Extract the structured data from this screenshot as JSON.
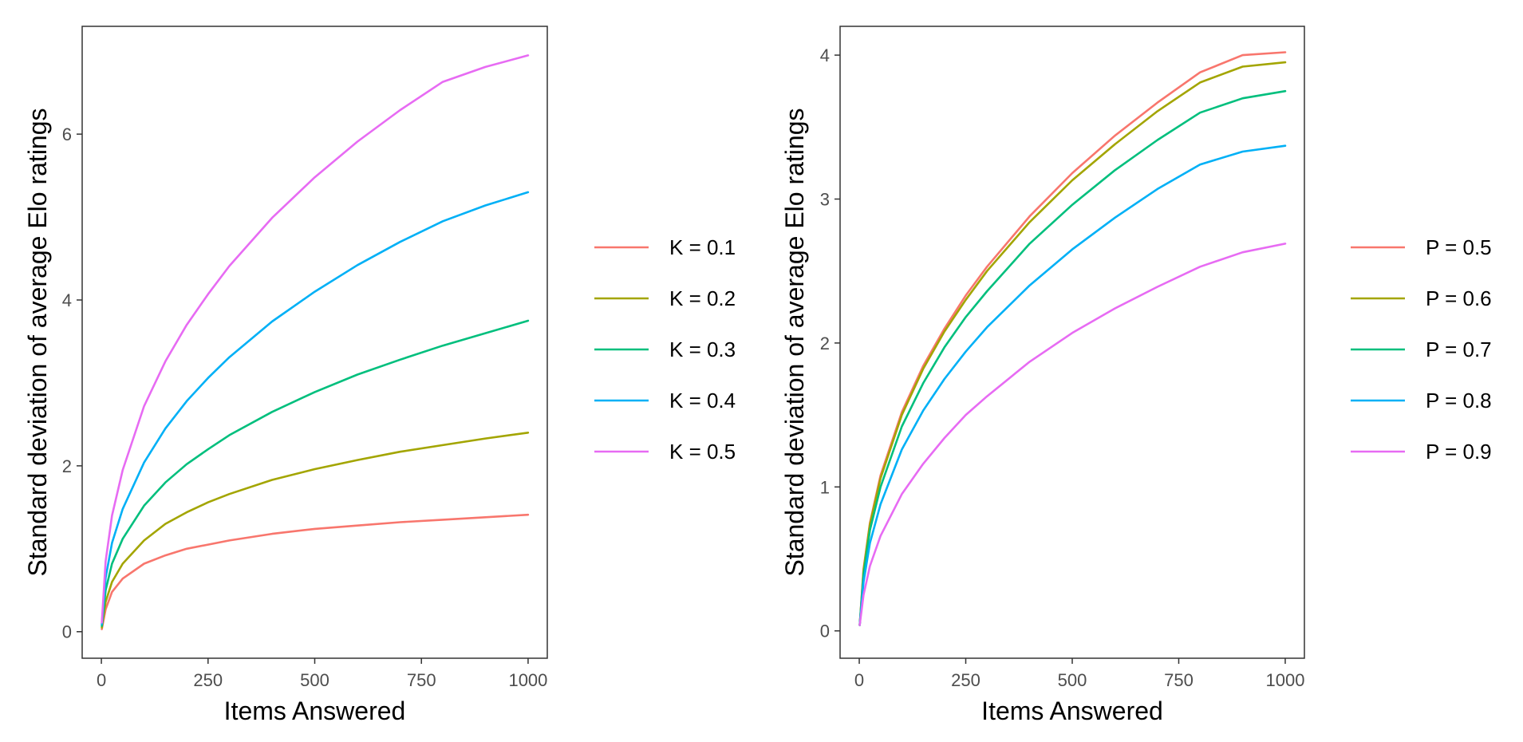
{
  "chart_data": [
    {
      "type": "line",
      "xlabel": "Items Answered",
      "ylabel": "Standard deviation of average Elo ratings",
      "xlim": [
        -45,
        1045
      ],
      "ylim": [
        -0.32,
        7.3
      ],
      "xticks": [
        0,
        250,
        500,
        750,
        1000
      ],
      "xtick_labels": [
        "0",
        "250",
        "500",
        "750",
        "1000"
      ],
      "yticks": [
        0,
        2,
        4,
        6
      ],
      "ytick_labels": [
        "0",
        "2",
        "4",
        "6"
      ],
      "grid": false,
      "legend_position": "right",
      "series": [
        {
          "name": "K = 0.1",
          "color": "#F8766D",
          "x": [
            1,
            10,
            25,
            50,
            100,
            150,
            200,
            250,
            300,
            400,
            500,
            600,
            700,
            800,
            900,
            1000
          ],
          "values": [
            0.03,
            0.27,
            0.48,
            0.64,
            0.82,
            0.92,
            1.0,
            1.05,
            1.1,
            1.18,
            1.24,
            1.28,
            1.32,
            1.35,
            1.38,
            1.41
          ]
        },
        {
          "name": "K = 0.2",
          "color": "#A3A500",
          "x": [
            1,
            10,
            25,
            50,
            100,
            150,
            200,
            250,
            300,
            400,
            500,
            600,
            700,
            800,
            900,
            1000
          ],
          "values": [
            0.05,
            0.36,
            0.6,
            0.82,
            1.1,
            1.3,
            1.44,
            1.56,
            1.66,
            1.83,
            1.96,
            2.07,
            2.17,
            2.25,
            2.33,
            2.4
          ]
        },
        {
          "name": "K = 0.3",
          "color": "#00BF7D",
          "x": [
            1,
            10,
            25,
            50,
            100,
            150,
            200,
            250,
            300,
            400,
            500,
            600,
            700,
            800,
            900,
            1000
          ],
          "values": [
            0.07,
            0.5,
            0.82,
            1.12,
            1.52,
            1.8,
            2.02,
            2.2,
            2.37,
            2.65,
            2.89,
            3.1,
            3.28,
            3.45,
            3.6,
            3.75
          ]
        },
        {
          "name": "K = 0.4",
          "color": "#00B0F6",
          "x": [
            1,
            10,
            25,
            50,
            100,
            150,
            200,
            250,
            300,
            400,
            500,
            600,
            700,
            800,
            900,
            1000
          ],
          "values": [
            0.09,
            0.65,
            1.07,
            1.48,
            2.04,
            2.45,
            2.78,
            3.06,
            3.31,
            3.74,
            4.1,
            4.42,
            4.7,
            4.95,
            5.14,
            5.3
          ]
        },
        {
          "name": "K = 0.5",
          "color": "#E76BF3",
          "x": [
            1,
            10,
            25,
            50,
            100,
            150,
            200,
            250,
            300,
            400,
            500,
            600,
            700,
            800,
            900,
            1000
          ],
          "values": [
            0.11,
            0.85,
            1.4,
            1.95,
            2.72,
            3.26,
            3.7,
            4.07,
            4.41,
            4.99,
            5.48,
            5.91,
            6.29,
            6.63,
            6.81,
            6.95
          ]
        }
      ]
    },
    {
      "type": "line",
      "xlabel": "Items Answered",
      "ylabel": "Standard deviation of average Elo ratings",
      "xlim": [
        -45,
        1045
      ],
      "ylim": [
        -0.19,
        4.2
      ],
      "xticks": [
        0,
        250,
        500,
        750,
        1000
      ],
      "xtick_labels": [
        "0",
        "250",
        "500",
        "750",
        "1000"
      ],
      "yticks": [
        0,
        1,
        2,
        3,
        4
      ],
      "ytick_labels": [
        "0",
        "1",
        "2",
        "3",
        "4"
      ],
      "grid": false,
      "legend_position": "right",
      "series": [
        {
          "name": "P = 0.5",
          "color": "#F8766D",
          "x": [
            1,
            10,
            25,
            50,
            100,
            150,
            200,
            250,
            300,
            400,
            500,
            600,
            700,
            800,
            900,
            1000
          ],
          "values": [
            0.04,
            0.43,
            0.75,
            1.08,
            1.52,
            1.84,
            2.1,
            2.33,
            2.53,
            2.88,
            3.18,
            3.44,
            3.67,
            3.88,
            4.0,
            4.02
          ]
        },
        {
          "name": "P = 0.6",
          "color": "#A3A500",
          "x": [
            1,
            10,
            25,
            50,
            100,
            150,
            200,
            250,
            300,
            400,
            500,
            600,
            700,
            800,
            900,
            1000
          ],
          "values": [
            0.04,
            0.42,
            0.74,
            1.06,
            1.5,
            1.82,
            2.08,
            2.3,
            2.5,
            2.84,
            3.13,
            3.38,
            3.61,
            3.81,
            3.92,
            3.95
          ]
        },
        {
          "name": "P = 0.7",
          "color": "#00BF7D",
          "x": [
            1,
            10,
            25,
            50,
            100,
            150,
            200,
            250,
            300,
            400,
            500,
            600,
            700,
            800,
            900,
            1000
          ],
          "values": [
            0.04,
            0.39,
            0.7,
            1.0,
            1.42,
            1.72,
            1.97,
            2.18,
            2.36,
            2.69,
            2.96,
            3.2,
            3.41,
            3.6,
            3.7,
            3.75
          ]
        },
        {
          "name": "P = 0.8",
          "color": "#00B0F6",
          "x": [
            1,
            10,
            25,
            50,
            100,
            150,
            200,
            250,
            300,
            400,
            500,
            600,
            700,
            800,
            900,
            1000
          ],
          "values": [
            0.04,
            0.34,
            0.61,
            0.88,
            1.26,
            1.53,
            1.75,
            1.94,
            2.11,
            2.4,
            2.65,
            2.87,
            3.07,
            3.24,
            3.33,
            3.37
          ]
        },
        {
          "name": "P = 0.9",
          "color": "#E76BF3",
          "x": [
            1,
            10,
            25,
            50,
            100,
            150,
            200,
            250,
            300,
            400,
            500,
            600,
            700,
            800,
            900,
            1000
          ],
          "values": [
            0.04,
            0.25,
            0.45,
            0.66,
            0.95,
            1.16,
            1.34,
            1.5,
            1.63,
            1.87,
            2.07,
            2.24,
            2.39,
            2.53,
            2.63,
            2.69
          ]
        }
      ]
    }
  ]
}
